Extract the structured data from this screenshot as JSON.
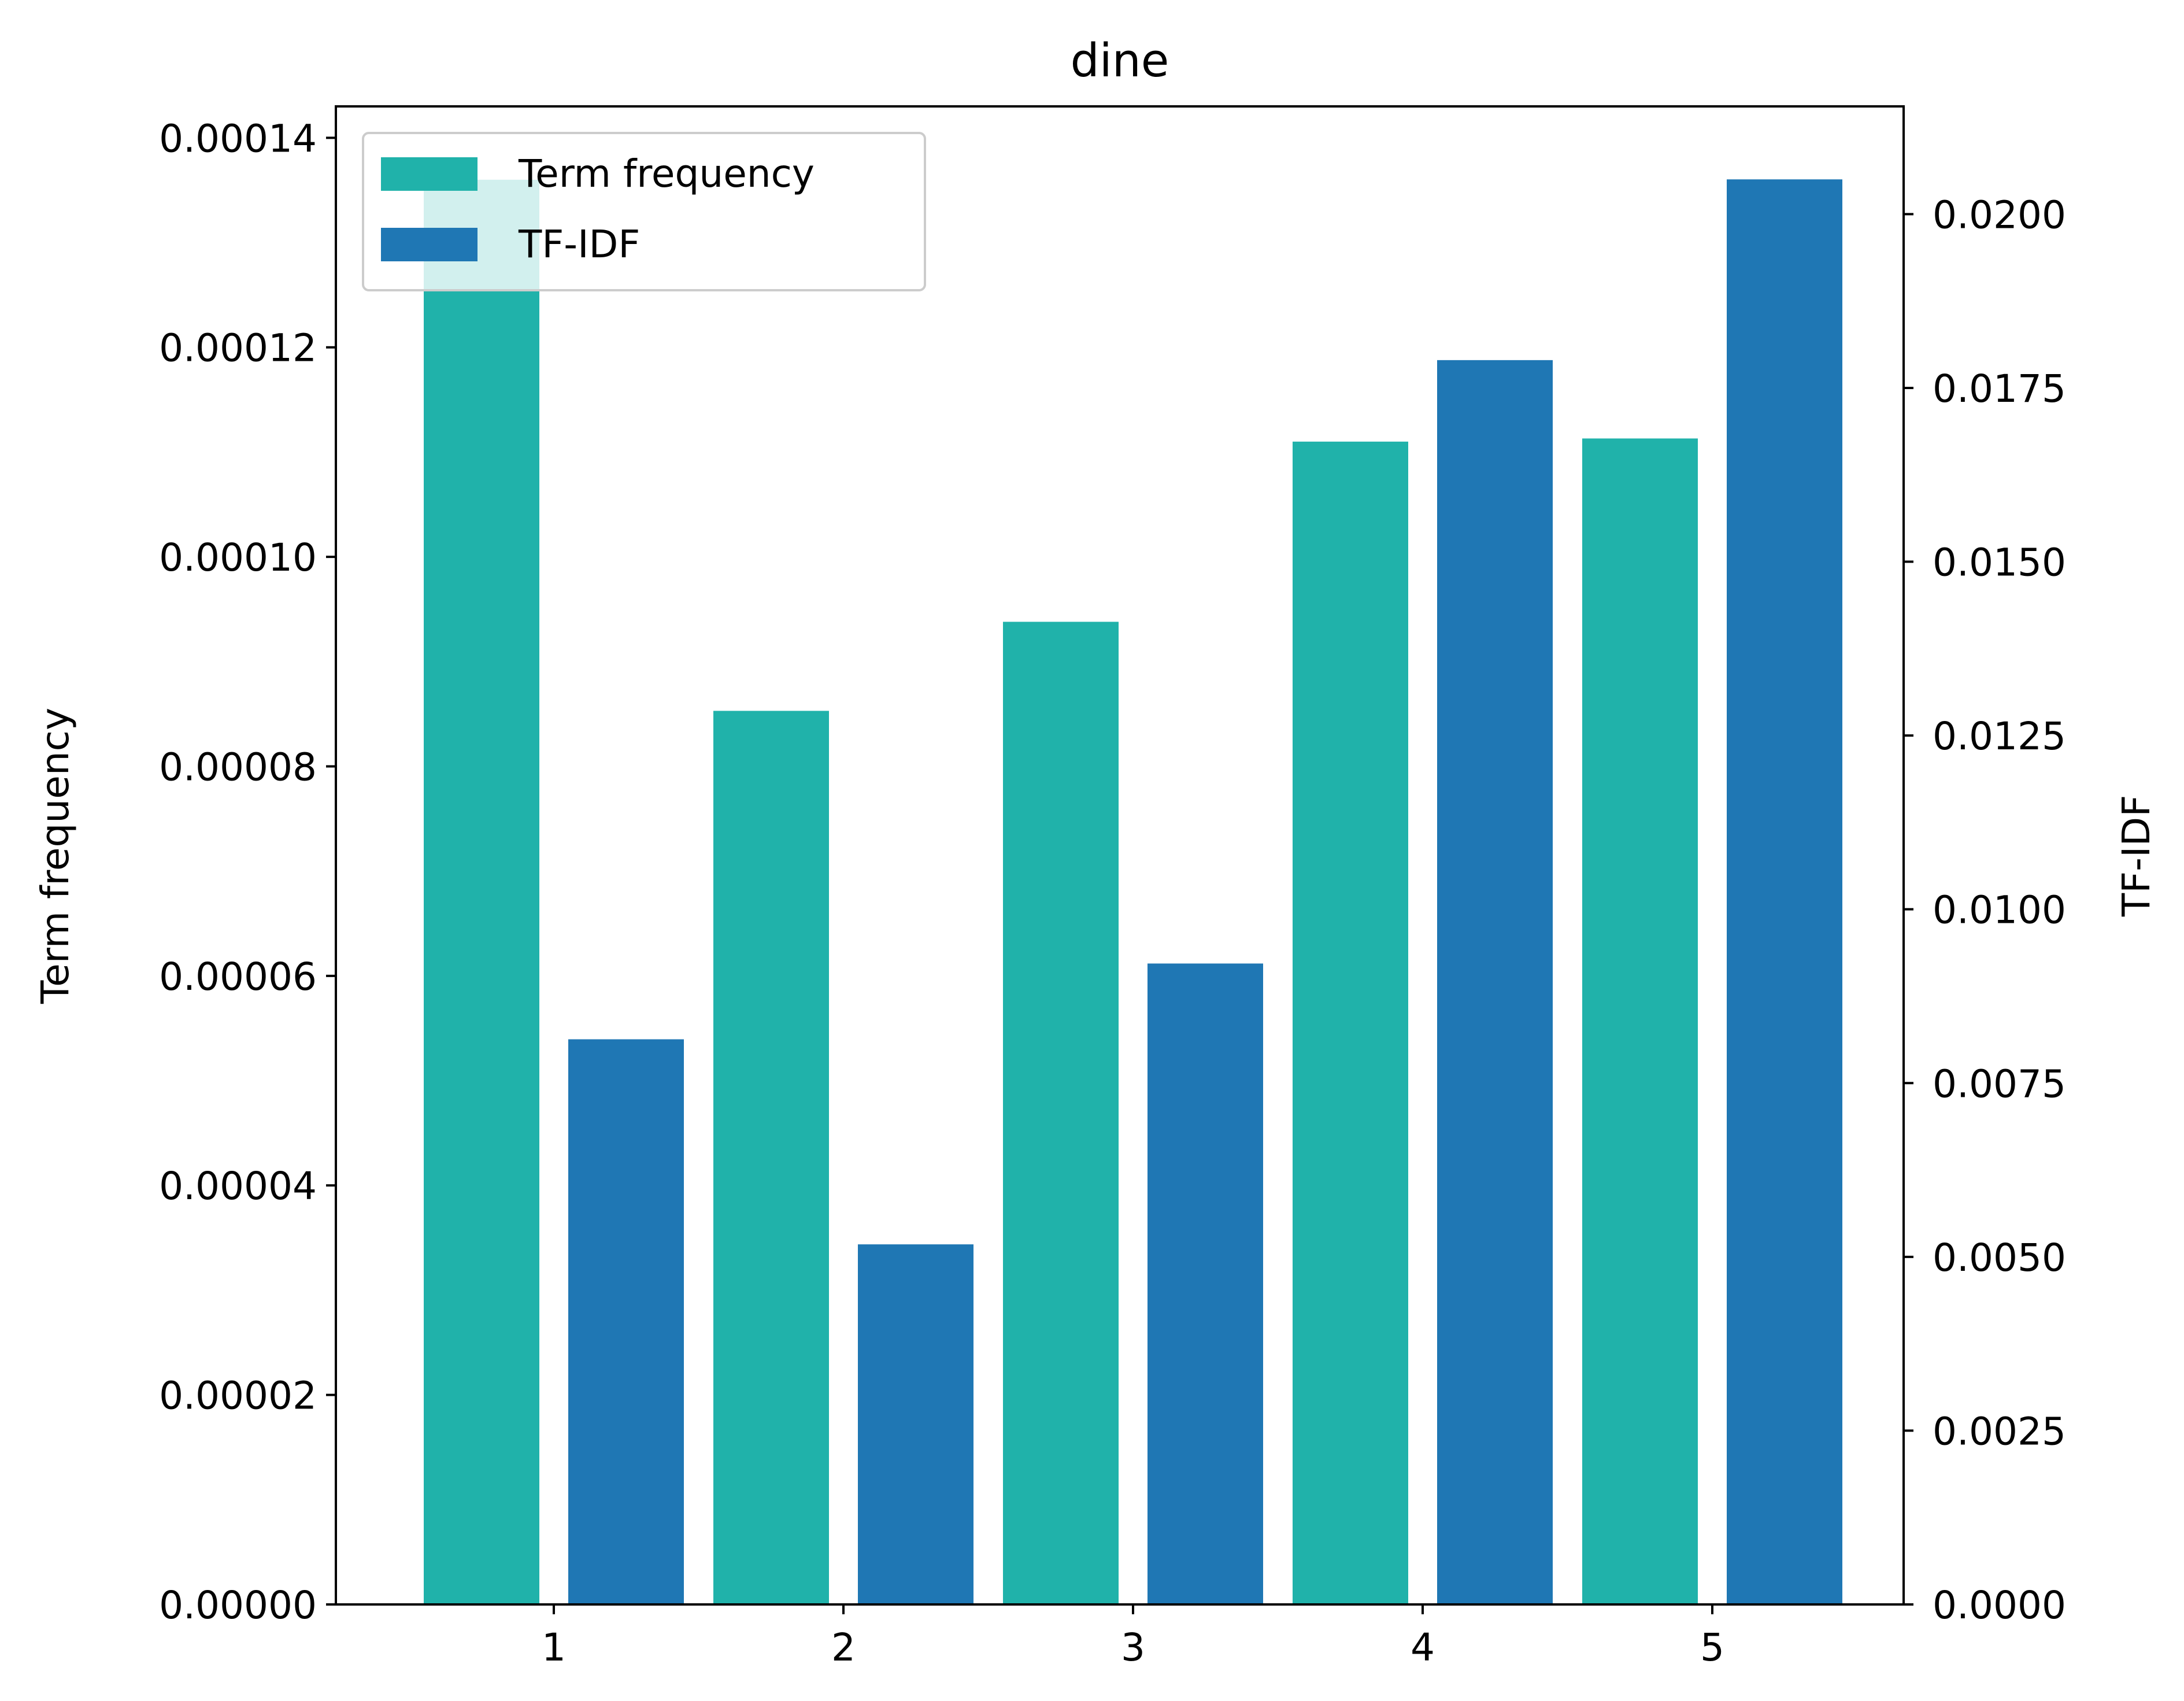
{
  "chart_data": {
    "type": "bar",
    "title": "dine",
    "xlabel": "",
    "ylabel_left": "Term frequency",
    "ylabel_right": "TF-IDF",
    "categories": [
      "1",
      "2",
      "3",
      "4",
      "5"
    ],
    "ylim_left": [
      0,
      0.000143
    ],
    "ylim_right": [
      0,
      0.02155
    ],
    "yticks_left": [
      {
        "value": 0,
        "label": "0.00000"
      },
      {
        "value": 2e-05,
        "label": "0.00002"
      },
      {
        "value": 4e-05,
        "label": "0.00004"
      },
      {
        "value": 6e-05,
        "label": "0.00006"
      },
      {
        "value": 8e-05,
        "label": "0.00008"
      },
      {
        "value": 0.0001,
        "label": "0.00010"
      },
      {
        "value": 0.00012,
        "label": "0.00012"
      },
      {
        "value": 0.00014,
        "label": "0.00014"
      }
    ],
    "yticks_right": [
      {
        "value": 0,
        "label": "0.0000"
      },
      {
        "value": 0.0025,
        "label": "0.0025"
      },
      {
        "value": 0.005,
        "label": "0.0050"
      },
      {
        "value": 0.0075,
        "label": "0.0075"
      },
      {
        "value": 0.01,
        "label": "0.0100"
      },
      {
        "value": 0.0125,
        "label": "0.0125"
      },
      {
        "value": 0.015,
        "label": "0.0150"
      },
      {
        "value": 0.0175,
        "label": "0.0175"
      },
      {
        "value": 0.02,
        "label": "0.0200"
      }
    ],
    "series": [
      {
        "name": "Term frequency",
        "axis": "left",
        "color": "#20b2aa",
        "values": [
          0.000136,
          8.53e-05,
          9.38e-05,
          0.000111,
          0.0001113
        ]
      },
      {
        "name": "TF-IDF",
        "axis": "right",
        "color": "#1f77b4",
        "values": [
          0.00813,
          0.00518,
          0.00922,
          0.0179,
          0.0205
        ]
      }
    ],
    "legend": "upper-left",
    "grid": false
  }
}
